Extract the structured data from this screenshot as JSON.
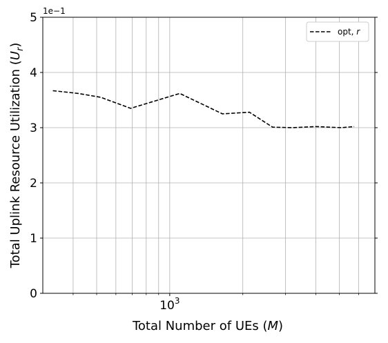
{
  "chart_data": {
    "type": "line",
    "title": "",
    "xlabel": "Total Number of UEs (",
    "xlabel_var": "M",
    "xlabel_close": ")",
    "ylabel": "Total Uplink Resource Utilization (",
    "ylabel_var": "U",
    "ylabel_sub": "r",
    "ylabel_close": ")",
    "x_scale": "log",
    "xlim": [
      300,
      7000
    ],
    "ylim": [
      0,
      5
    ],
    "y_offset_label": "1e−1",
    "x_major_tick_labels": [
      {
        "value": 1000,
        "base": "10",
        "exp": "3"
      }
    ],
    "x_minor_ticks": [
      400,
      500,
      600,
      700,
      800,
      900,
      2000,
      3000,
      4000,
      5000,
      6000
    ],
    "y_ticks": [
      0,
      1,
      2,
      3,
      4,
      5
    ],
    "y_tick_labels": [
      "0",
      "1",
      "2",
      "3",
      "4",
      "5"
    ],
    "grid": true,
    "legend_position": "top-right",
    "series": [
      {
        "name": "opt, ",
        "name_var": "r",
        "color": "#000000",
        "dash": "dashed",
        "x": [
          330,
          420,
          520,
          690,
          1100,
          1650,
          2130,
          2650,
          3200,
          4000,
          5100,
          5750
        ],
        "y": [
          3.67,
          3.62,
          3.55,
          3.35,
          3.62,
          3.25,
          3.28,
          3.01,
          3.0,
          3.02,
          3.0,
          3.02
        ]
      }
    ]
  }
}
